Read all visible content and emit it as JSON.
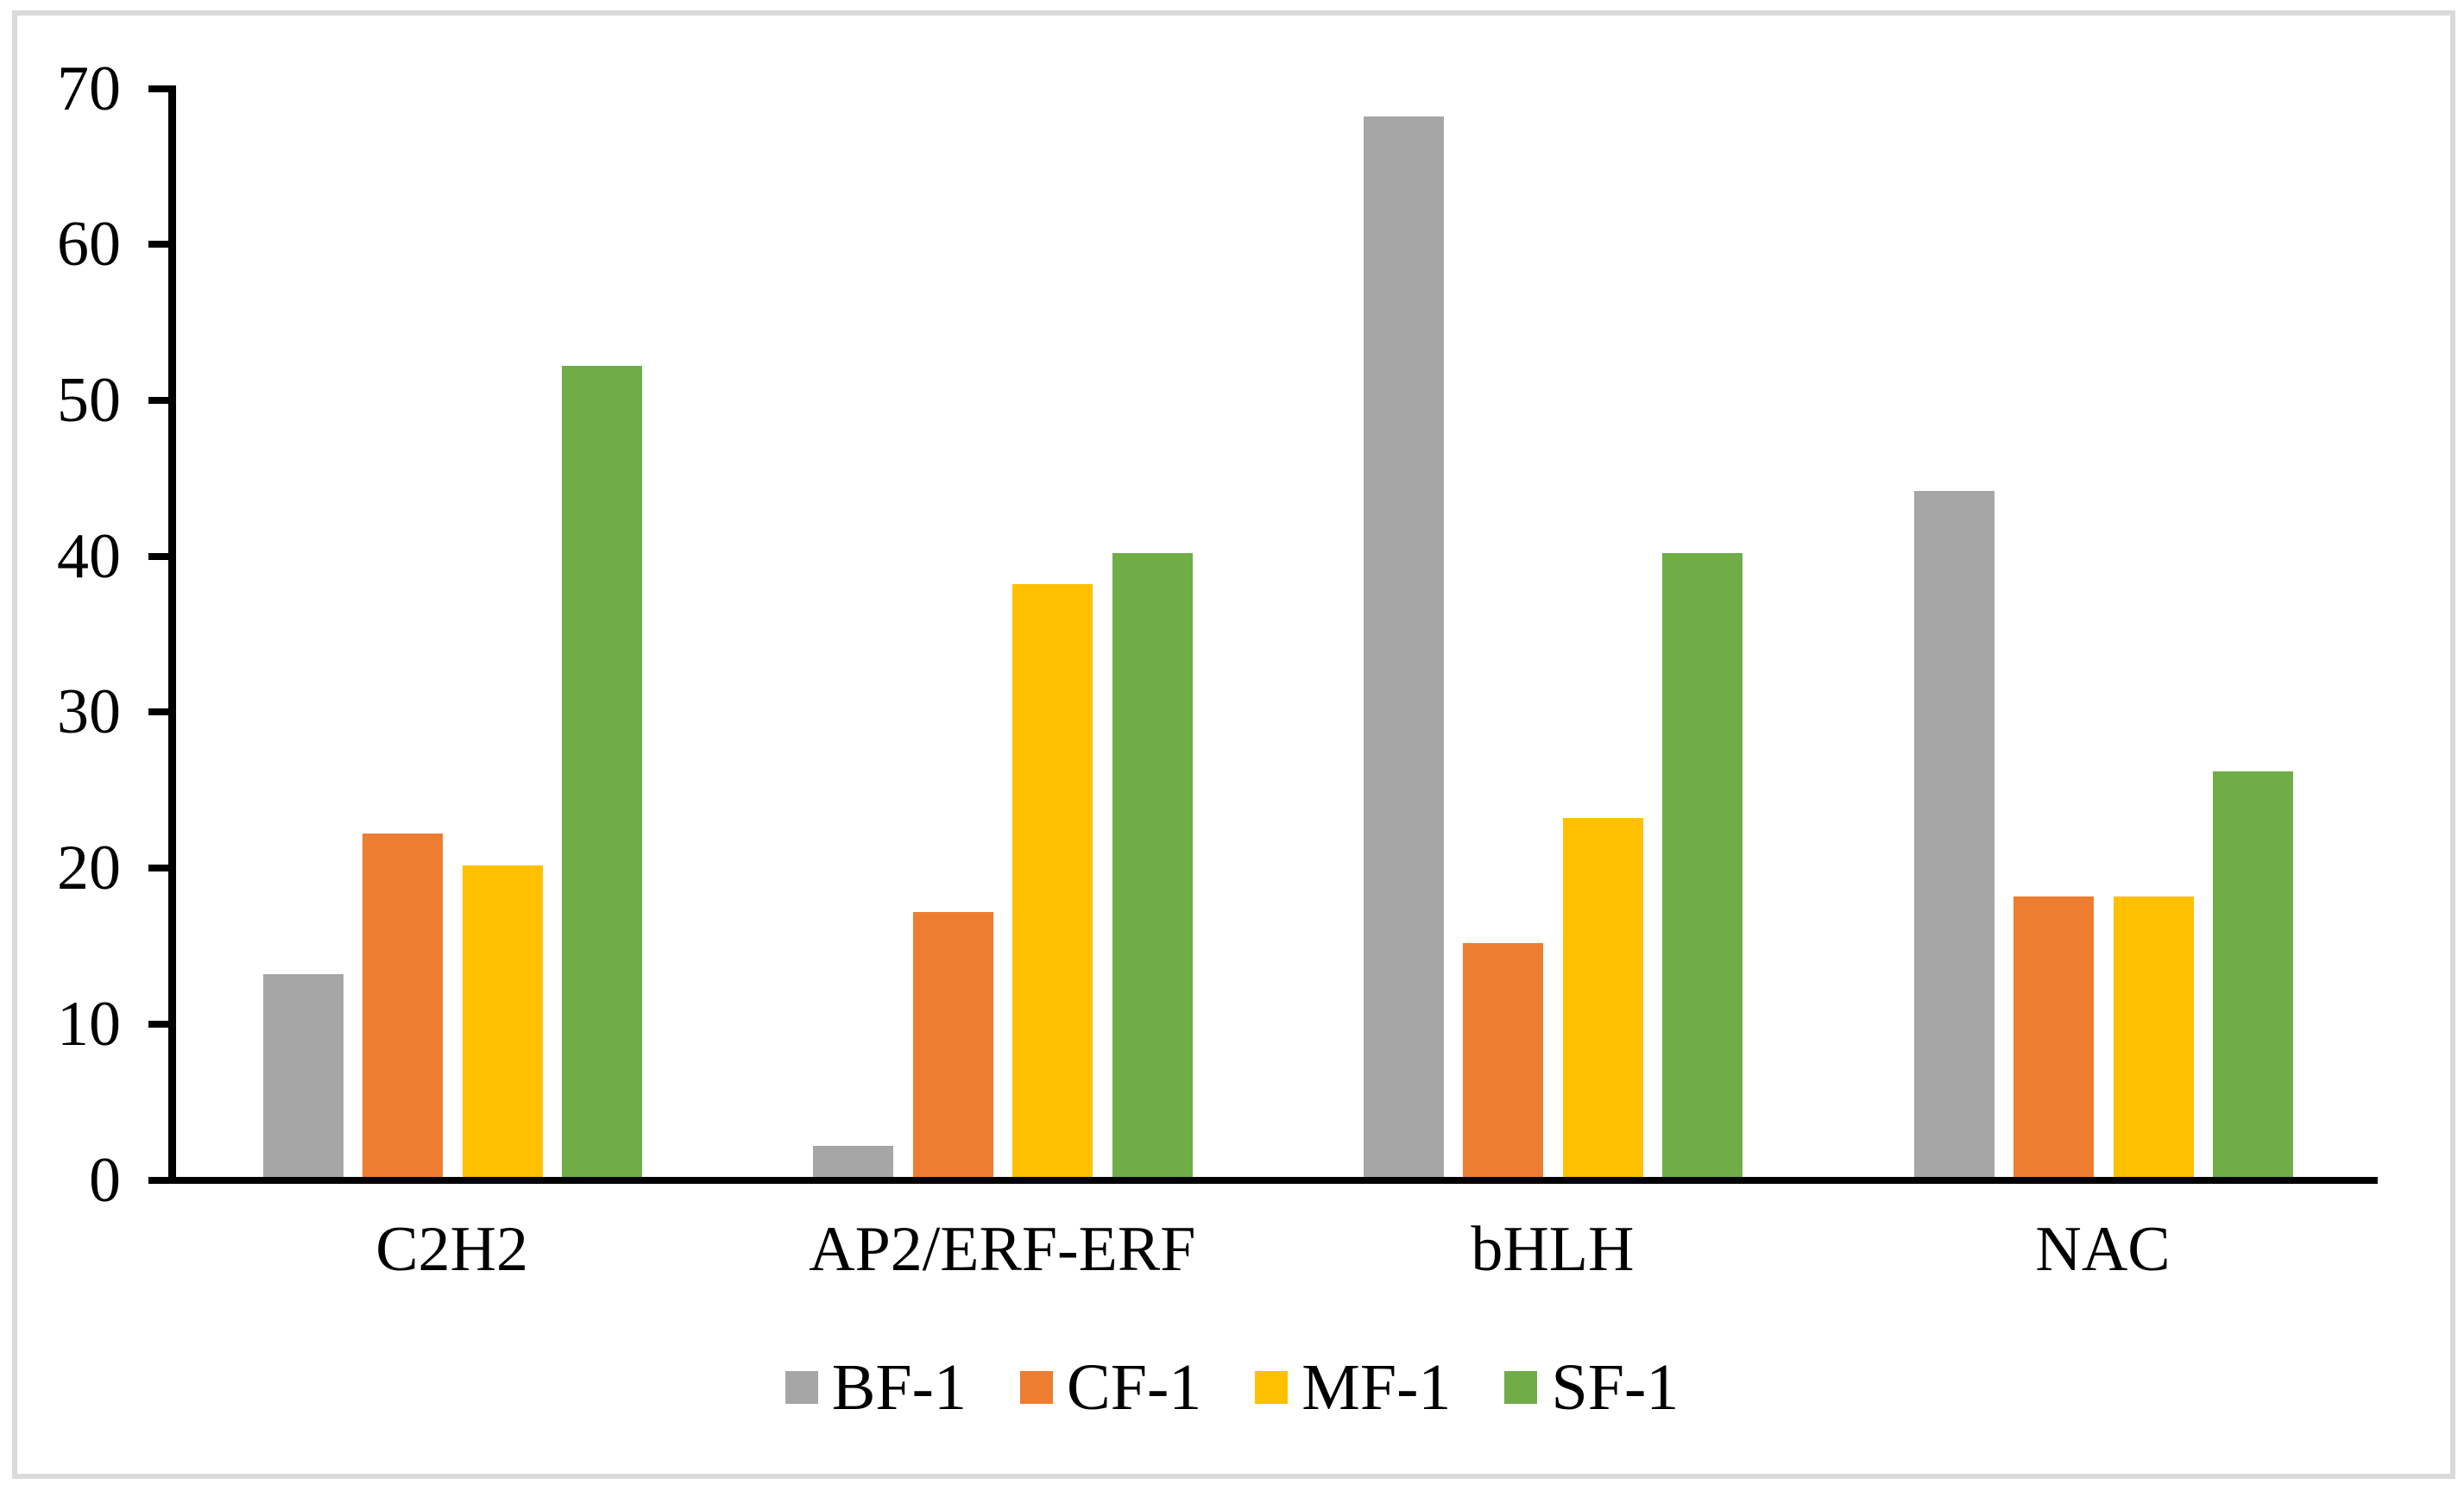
{
  "chart_data": {
    "type": "bar",
    "categories": [
      "C2H2",
      "AP2/ERF-ERF",
      "bHLH",
      "NAC"
    ],
    "series": [
      {
        "name": "BF-1",
        "color": "#A6A6A6",
        "values": [
          13,
          2,
          68,
          44
        ]
      },
      {
        "name": "CF-1",
        "color": "#ED7D31",
        "values": [
          22,
          17,
          15,
          18
        ]
      },
      {
        "name": "MF-1",
        "color": "#FFC000",
        "values": [
          20,
          38,
          23,
          18
        ]
      },
      {
        "name": "SF-1",
        "color": "#70AD47",
        "values": [
          52,
          40,
          40,
          26
        ]
      }
    ],
    "title": "",
    "xlabel": "",
    "ylabel": "",
    "ylim": [
      0,
      70
    ],
    "yticks": [
      0,
      10,
      20,
      30,
      40,
      50,
      60,
      70
    ],
    "grid": false,
    "legend_position": "bottom",
    "axis_color": "#000000",
    "frame_border_color": "#DADADA",
    "background_color": "#FFFFFF"
  }
}
